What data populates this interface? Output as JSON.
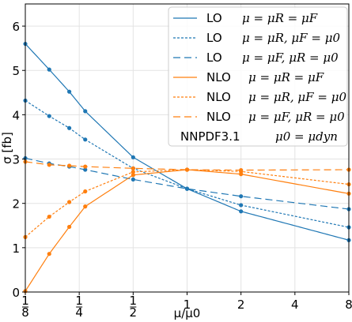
{
  "chart_data": {
    "type": "line",
    "xscale": "log2",
    "xlim": [
      0.125,
      8
    ],
    "ylim": [
      0,
      6.5
    ],
    "grid": true,
    "xlabel": "μ/μ0",
    "ylabel": "σ [fb]",
    "x_ticks": [
      0.125,
      0.25,
      0.5,
      1,
      2,
      4,
      8
    ],
    "x_tick_labels": [
      "1/8",
      "1/4",
      "1/2",
      "1",
      "2",
      "4",
      "8"
    ],
    "y_ticks": [
      0,
      1,
      2,
      3,
      4,
      5,
      6
    ],
    "y_tick_labels": [
      "0",
      "1",
      "2",
      "3",
      "4",
      "5",
      "6"
    ],
    "legend_position": "top-right",
    "legend_note": {
      "label": "NNPDF3.1",
      "math": "μ0 = μdyn"
    },
    "colors": {
      "LO": "#1f77b4",
      "NLO": "#ff7f0e"
    },
    "marker_x": [
      0.125,
      0.17,
      0.22,
      0.27,
      0.5,
      1,
      2,
      8
    ],
    "series": [
      {
        "name": "LO",
        "legend_math": "μ = μR = μF",
        "color": "#1f77b4",
        "linestyle": "solid",
        "values": [
          5.6,
          5.02,
          4.52,
          4.08,
          3.04,
          2.33,
          1.82,
          1.17
        ]
      },
      {
        "name": "LO",
        "legend_math": "μ = μR, μF = μ0",
        "color": "#1f77b4",
        "linestyle": "dotted",
        "values": [
          4.32,
          3.97,
          3.7,
          3.44,
          2.79,
          2.33,
          1.96,
          1.46
        ]
      },
      {
        "name": "LO",
        "legend_math": "μ = μF, μR = μ0",
        "color": "#1f77b4",
        "linestyle": "dashed",
        "values": [
          3.02,
          2.9,
          2.83,
          2.76,
          2.54,
          2.33,
          2.16,
          1.87
        ]
      },
      {
        "name": "NLO",
        "legend_math": "μ = μR = μF",
        "color": "#ff7f0e",
        "linestyle": "solid",
        "values": [
          0.02,
          0.86,
          1.47,
          1.93,
          2.64,
          2.76,
          2.66,
          2.22
        ]
      },
      {
        "name": "NLO",
        "legend_math": "μ = μR, μF = μ0",
        "color": "#ff7f0e",
        "linestyle": "dotted",
        "values": [
          1.24,
          1.7,
          2.03,
          2.27,
          2.71,
          2.76,
          2.72,
          2.43
        ]
      },
      {
        "name": "NLO",
        "legend_math": "μ = μF, μR = μ0",
        "color": "#ff7f0e",
        "linestyle": "dashed",
        "values": [
          2.94,
          2.87,
          2.85,
          2.83,
          2.79,
          2.76,
          2.75,
          2.76
        ]
      }
    ]
  }
}
